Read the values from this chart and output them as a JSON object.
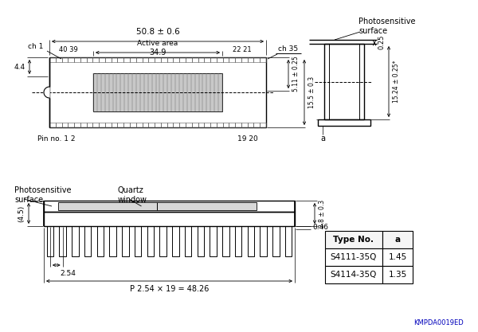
{
  "bg_color": "#ffffff",
  "line_color": "#000000",
  "table_data": [
    [
      "Type No.",
      "a"
    ],
    [
      "S4111-35Q",
      "1.45"
    ],
    [
      "S4114-35Q",
      "1.35"
    ]
  ],
  "annotations": {
    "top_dim": "50.8 ± 0.6",
    "active_area": "Active area",
    "active_dim": "34.9",
    "ch1": "ch 1",
    "ch35": "ch 35",
    "ch1_num": "40 39",
    "ch35_num": "22 21",
    "height_4_4": "4.4",
    "pin_no": "Pin no. 1 2",
    "pin_no_right": "19 20",
    "dim_5_11": "5.11 ± 0.25",
    "dim_15_5": "15.5 ± 0.3",
    "photo_surface_top": "Photosensitive\nsurface",
    "dim_0_25": "0.25",
    "dim_15_24": "15.24 ± 0.25*",
    "dim_a": "a",
    "photo_surface_bot": "Photosensitive\nsurface",
    "quartz_window": "Quartz\nwindow",
    "dim_2_8": "2.8 ± 0.3",
    "dim_0_46": "0.46",
    "dim_2_54": "2.54",
    "dim_4_5": "(4.5)",
    "pitch": "P 2.54 × 19 = 48.26",
    "kmpda": "KMPDA0019ED"
  }
}
